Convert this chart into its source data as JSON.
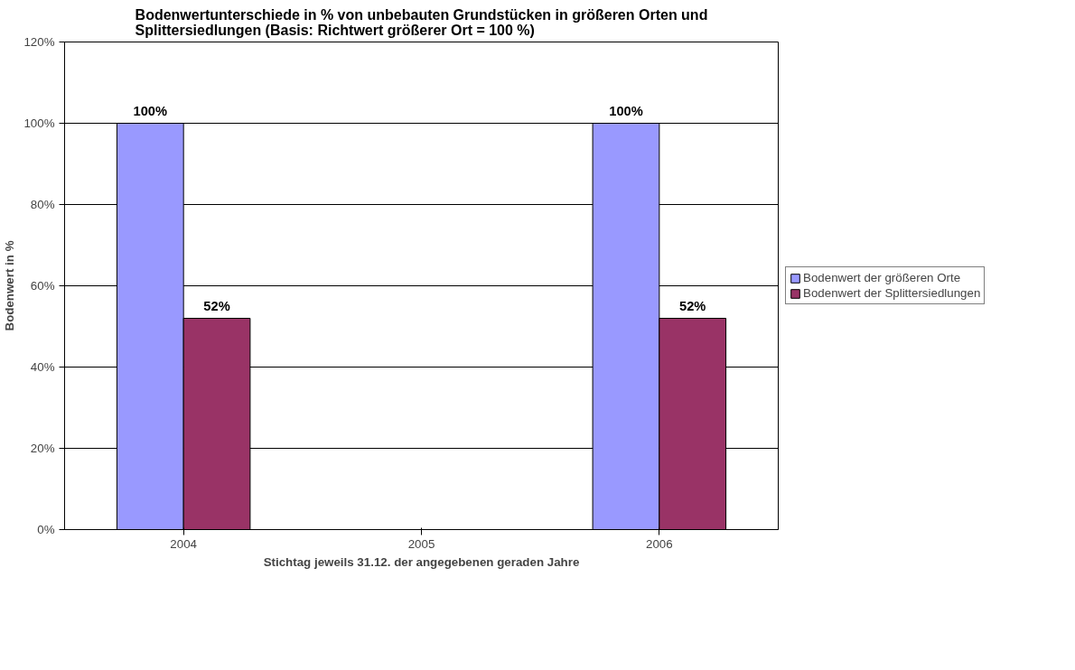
{
  "chart_data": {
    "type": "bar",
    "title": "Bodenwertunterschiede in % von unbebauten Grundstücken in größeren Orten und Splittersiedlungen (Basis: Richtwert größerer Ort = 100 %)",
    "xlabel": "Stichtag jeweils 31.12. der angegebenen geraden Jahre",
    "ylabel": "Bodenwert in %",
    "categories": [
      "2004",
      "2005",
      "2006"
    ],
    "series": [
      {
        "name": "Bodenwert der größeren Orte",
        "color": "#9999ff",
        "values": [
          100,
          null,
          100
        ],
        "value_labels": [
          "100%",
          null,
          "100%"
        ]
      },
      {
        "name": "Bodenwert der Splittersiedlungen",
        "color": "#993366",
        "values": [
          52,
          null,
          52
        ],
        "value_labels": [
          "52%",
          null,
          "52%"
        ]
      }
    ],
    "ylim": [
      0,
      120
    ],
    "yticks": [
      {
        "value": 0,
        "label": "0%"
      },
      {
        "value": 20,
        "label": "20%"
      },
      {
        "value": 40,
        "label": "40%"
      },
      {
        "value": 60,
        "label": "60%"
      },
      {
        "value": 80,
        "label": "80%"
      },
      {
        "value": 100,
        "label": "100%"
      },
      {
        "value": 120,
        "label": "120%"
      }
    ],
    "grid": "y",
    "legend": "right"
  }
}
